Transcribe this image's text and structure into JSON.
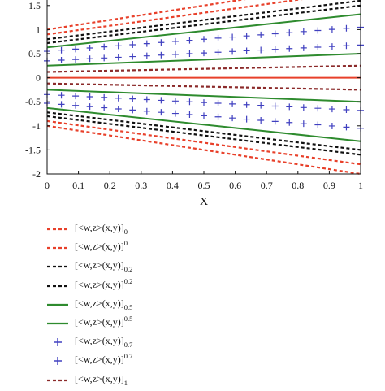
{
  "chart_data": {
    "type": "line",
    "xlabel": "X",
    "ylabel": "",
    "xlim": [
      0,
      1
    ],
    "ylim": [
      -2,
      1.75
    ],
    "x_ticks": [
      "0",
      "0.1",
      "0.2",
      "0.3",
      "0.4",
      "0.5",
      "0.6",
      "0.7",
      "0.8",
      "0.9",
      "1"
    ],
    "y_ticks": [
      "-2",
      "-1.5",
      "-1",
      "-0.5",
      "0",
      "0.5",
      "1",
      "1.5"
    ],
    "x": [
      0,
      1
    ],
    "series": [
      {
        "name": "[<w,z>(x,y)]",
        "script": "sub",
        "alpha": "0",
        "color": "#e8402a",
        "style": "dashed",
        "upper": [
          1,
          2
        ],
        "lower": [
          -1,
          -2
        ]
      },
      {
        "name": "[<w,z>(x,y)]",
        "script": "sup",
        "alpha": "0",
        "color": "#e8402a",
        "style": "dashed",
        "upper": [
          0.9,
          1.8
        ],
        "lower": [
          -0.9,
          -1.8
        ]
      },
      {
        "name": "[<w,z>(x,y)]",
        "script": "sub",
        "alpha": "0.2",
        "color": "#111111",
        "style": "dashed",
        "upper": [
          0.8,
          1.6
        ],
        "lower": [
          -0.8,
          -1.6
        ]
      },
      {
        "name": "[<w,z>(x,y)]",
        "script": "sup",
        "alpha": "0.2",
        "color": "#111111",
        "style": "dashed",
        "upper": [
          0.72,
          1.5
        ],
        "lower": [
          -0.72,
          -1.5
        ]
      },
      {
        "name": "[<w,z>(x,y)]",
        "script": "sub",
        "alpha": "0.5",
        "color": "#2e8b2e",
        "style": "solid",
        "upper": [
          0.63,
          1.32
        ],
        "lower": [
          -0.63,
          -1.32
        ]
      },
      {
        "name": "[<w,z>(x,y)]",
        "script": "sup",
        "alpha": "0.5",
        "color": "#2e8b2e",
        "style": "solid",
        "upper": [
          0.25,
          0.5
        ],
        "lower": [
          -0.25,
          -0.5
        ]
      },
      {
        "name": "[<w,z>(x,y)]",
        "script": "sub",
        "alpha": "0.7",
        "color": "#4040c0",
        "style": "plus",
        "upper": [
          0.55,
          1.05
        ],
        "lower": [
          -0.53,
          -1.05
        ]
      },
      {
        "name": "[<w,z>(x,y)]",
        "script": "sup",
        "alpha": "0.7",
        "color": "#4040c0",
        "style": "plus",
        "upper": [
          0.35,
          0.68
        ],
        "lower": [
          -0.35,
          -0.68
        ]
      },
      {
        "name": "[<w,z>(x,y)]",
        "script": "sub",
        "alpha": "1",
        "color": "#8b2a2a",
        "style": "dashed",
        "upper": [
          0.12,
          0.25
        ],
        "lower": [
          -0.12,
          -0.25
        ]
      }
    ],
    "center_line": {
      "color": "#e8402a",
      "values": [
        0,
        0
      ]
    },
    "grid": false,
    "legend_position": "below"
  }
}
